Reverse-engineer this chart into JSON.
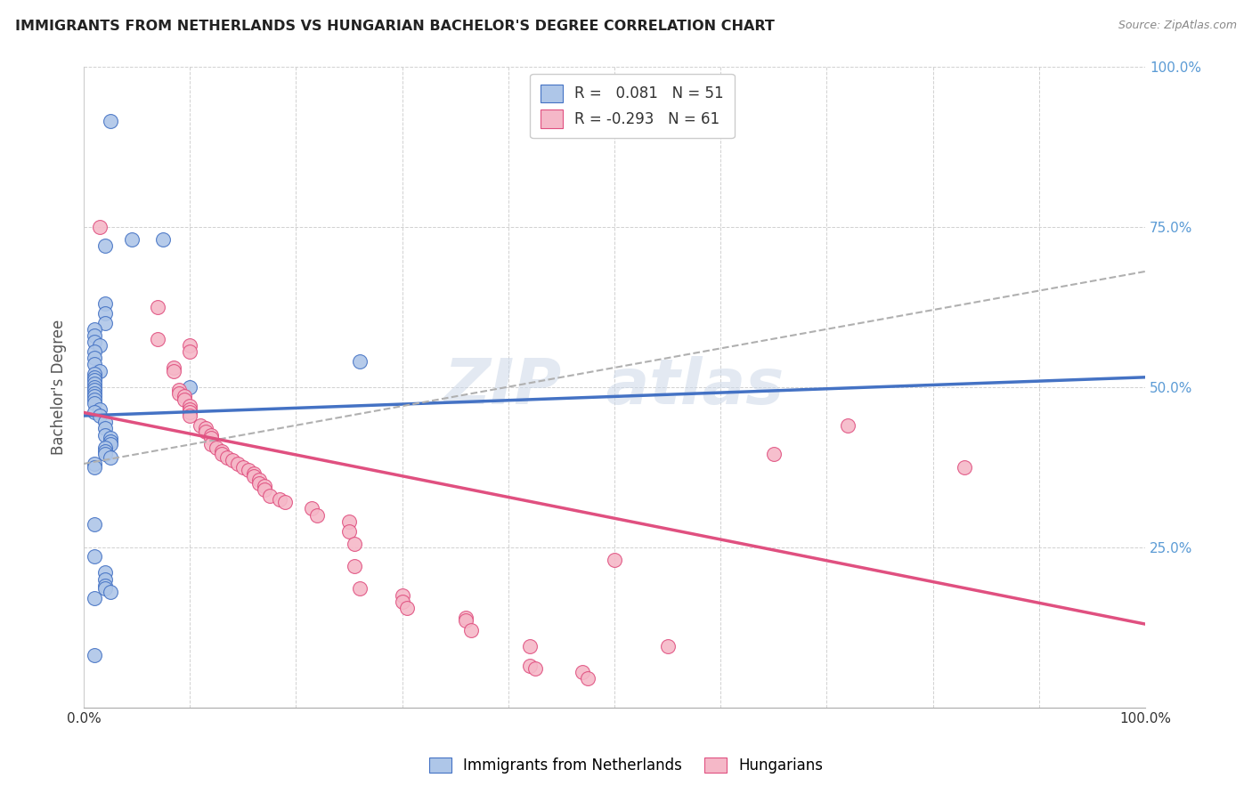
{
  "title": "IMMIGRANTS FROM NETHERLANDS VS HUNGARIAN BACHELOR'S DEGREE CORRELATION CHART",
  "source": "Source: ZipAtlas.com",
  "ylabel": "Bachelor's Degree",
  "right_yticks": [
    "100.0%",
    "75.0%",
    "50.0%",
    "25.0%"
  ],
  "right_ytick_vals": [
    1.0,
    0.75,
    0.5,
    0.25
  ],
  "legend_label1": "Immigrants from Netherlands",
  "legend_label2": "Hungarians",
  "legend_R1": " 0.081",
  "legend_N1": "51",
  "legend_R2": "-0.293",
  "legend_N2": "61",
  "color_blue": "#aec6e8",
  "color_pink": "#f5b8c8",
  "line_blue": "#4472C4",
  "line_pink": "#E05080",
  "line_gray_dashed": "#b0b0b0",
  "scatter_blue": [
    [
      0.025,
      0.915
    ],
    [
      0.045,
      0.73
    ],
    [
      0.075,
      0.73
    ],
    [
      0.02,
      0.72
    ],
    [
      0.02,
      0.63
    ],
    [
      0.02,
      0.615
    ],
    [
      0.02,
      0.6
    ],
    [
      0.01,
      0.59
    ],
    [
      0.01,
      0.58
    ],
    [
      0.01,
      0.57
    ],
    [
      0.015,
      0.565
    ],
    [
      0.01,
      0.555
    ],
    [
      0.01,
      0.545
    ],
    [
      0.01,
      0.535
    ],
    [
      0.015,
      0.525
    ],
    [
      0.01,
      0.52
    ],
    [
      0.01,
      0.515
    ],
    [
      0.01,
      0.51
    ],
    [
      0.01,
      0.505
    ],
    [
      0.01,
      0.5
    ],
    [
      0.01,
      0.495
    ],
    [
      0.01,
      0.49
    ],
    [
      0.01,
      0.485
    ],
    [
      0.01,
      0.48
    ],
    [
      0.01,
      0.475
    ],
    [
      0.015,
      0.465
    ],
    [
      0.01,
      0.46
    ],
    [
      0.015,
      0.455
    ],
    [
      0.02,
      0.445
    ],
    [
      0.02,
      0.435
    ],
    [
      0.02,
      0.425
    ],
    [
      0.025,
      0.42
    ],
    [
      0.025,
      0.415
    ],
    [
      0.025,
      0.41
    ],
    [
      0.02,
      0.405
    ],
    [
      0.02,
      0.4
    ],
    [
      0.02,
      0.395
    ],
    [
      0.025,
      0.39
    ],
    [
      0.01,
      0.38
    ],
    [
      0.01,
      0.375
    ],
    [
      0.01,
      0.285
    ],
    [
      0.01,
      0.235
    ],
    [
      0.02,
      0.21
    ],
    [
      0.02,
      0.2
    ],
    [
      0.02,
      0.19
    ],
    [
      0.02,
      0.185
    ],
    [
      0.025,
      0.18
    ],
    [
      0.01,
      0.17
    ],
    [
      0.01,
      0.082
    ],
    [
      0.1,
      0.5
    ],
    [
      0.26,
      0.54
    ]
  ],
  "scatter_pink": [
    [
      0.015,
      0.75
    ],
    [
      0.07,
      0.625
    ],
    [
      0.07,
      0.575
    ],
    [
      0.1,
      0.565
    ],
    [
      0.1,
      0.555
    ],
    [
      0.085,
      0.53
    ],
    [
      0.085,
      0.525
    ],
    [
      0.09,
      0.495
    ],
    [
      0.09,
      0.49
    ],
    [
      0.095,
      0.485
    ],
    [
      0.095,
      0.48
    ],
    [
      0.1,
      0.47
    ],
    [
      0.1,
      0.465
    ],
    [
      0.1,
      0.46
    ],
    [
      0.1,
      0.455
    ],
    [
      0.11,
      0.44
    ],
    [
      0.115,
      0.435
    ],
    [
      0.115,
      0.43
    ],
    [
      0.12,
      0.425
    ],
    [
      0.12,
      0.42
    ],
    [
      0.12,
      0.41
    ],
    [
      0.125,
      0.405
    ],
    [
      0.13,
      0.4
    ],
    [
      0.13,
      0.395
    ],
    [
      0.135,
      0.39
    ],
    [
      0.14,
      0.385
    ],
    [
      0.145,
      0.38
    ],
    [
      0.15,
      0.375
    ],
    [
      0.155,
      0.37
    ],
    [
      0.16,
      0.365
    ],
    [
      0.16,
      0.36
    ],
    [
      0.165,
      0.355
    ],
    [
      0.165,
      0.35
    ],
    [
      0.17,
      0.345
    ],
    [
      0.17,
      0.34
    ],
    [
      0.175,
      0.33
    ],
    [
      0.185,
      0.325
    ],
    [
      0.19,
      0.32
    ],
    [
      0.215,
      0.31
    ],
    [
      0.22,
      0.3
    ],
    [
      0.25,
      0.29
    ],
    [
      0.25,
      0.275
    ],
    [
      0.255,
      0.255
    ],
    [
      0.255,
      0.22
    ],
    [
      0.26,
      0.185
    ],
    [
      0.3,
      0.175
    ],
    [
      0.3,
      0.165
    ],
    [
      0.305,
      0.155
    ],
    [
      0.36,
      0.14
    ],
    [
      0.36,
      0.135
    ],
    [
      0.365,
      0.12
    ],
    [
      0.42,
      0.095
    ],
    [
      0.42,
      0.065
    ],
    [
      0.425,
      0.06
    ],
    [
      0.47,
      0.055
    ],
    [
      0.475,
      0.045
    ],
    [
      0.72,
      0.44
    ],
    [
      0.5,
      0.23
    ],
    [
      0.65,
      0.395
    ],
    [
      0.83,
      0.375
    ],
    [
      0.55,
      0.095
    ]
  ],
  "blue_line_x": [
    0.0,
    1.0
  ],
  "blue_line_y": [
    0.455,
    0.515
  ],
  "gray_dashed_line_x": [
    0.0,
    1.0
  ],
  "gray_dashed_line_y": [
    0.38,
    0.68
  ],
  "pink_line_x": [
    0.0,
    1.0
  ],
  "pink_line_y": [
    0.46,
    0.13
  ],
  "xlim": [
    0.0,
    1.0
  ],
  "ylim": [
    0.0,
    1.0
  ],
  "xtick_vals": [
    0.0,
    0.1,
    0.2,
    0.3,
    0.4,
    0.5,
    0.6,
    0.7,
    0.8,
    0.9,
    1.0
  ],
  "ytick_vals": [
    0.25,
    0.5,
    0.75,
    1.0
  ]
}
